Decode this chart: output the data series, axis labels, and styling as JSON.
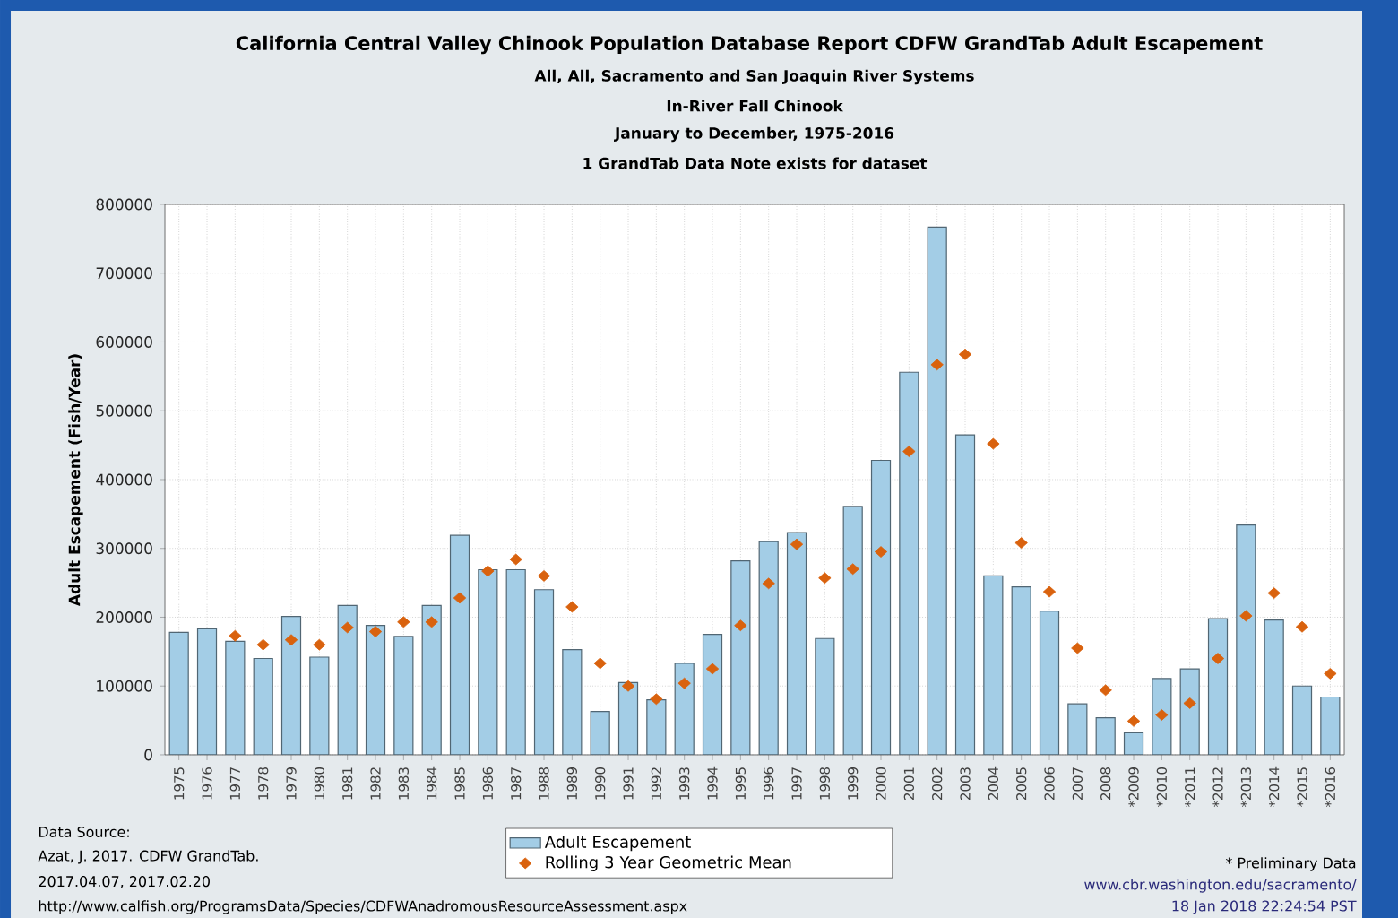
{
  "chart_data": {
    "type": "bar",
    "title": "California Central Valley Chinook Population Database Report CDFW GrandTab Adult Escapement",
    "subtitle": "All, All, Sacramento and San Joaquin River Systems",
    "ylabel": "Adult Escapement (Fish/Year)",
    "categories": [
      "1975",
      "1976",
      "1977",
      "1978",
      "1979",
      "1980",
      "1981",
      "1982",
      "1983",
      "1984",
      "1985",
      "1986",
      "1987",
      "1988",
      "1989",
      "1990",
      "1991",
      "1992",
      "1993",
      "1994",
      "1995",
      "1996",
      "1997",
      "1998",
      "1999",
      "2000",
      "2001",
      "2002",
      "2003",
      "2004",
      "2005",
      "2006",
      "2007",
      "2008",
      "*2009",
      "*2010",
      "*2011",
      "*2012",
      "*2013",
      "*2014",
      "*2015",
      "*2016"
    ],
    "series": [
      {
        "name": "Adult Escapement",
        "color": "#a3cde6",
        "values": [
          178000,
          183000,
          165000,
          140000,
          201000,
          142000,
          217000,
          188000,
          172000,
          217000,
          319000,
          269000,
          269000,
          240000,
          153000,
          63000,
          105000,
          80000,
          133000,
          175000,
          282000,
          310000,
          323000,
          169000,
          361000,
          428000,
          556000,
          767000,
          465000,
          260000,
          244000,
          209000,
          74000,
          54000,
          32000,
          111000,
          125000,
          198000,
          334000,
          196000,
          100000,
          84000
        ]
      },
      {
        "name": "Rolling 3 Year Geometric Mean",
        "type": "scatter",
        "marker": "diamond",
        "color": "#d9620e",
        "values": [
          null,
          null,
          173000,
          160000,
          167000,
          160000,
          185000,
          179000,
          193000,
          193000,
          228000,
          267000,
          284000,
          260000,
          215000,
          133000,
          100000,
          81000,
          104000,
          125000,
          188000,
          249000,
          306000,
          257000,
          270000,
          295000,
          441000,
          567000,
          582000,
          452000,
          308000,
          237000,
          155000,
          94000,
          49000,
          58000,
          75000,
          140000,
          202000,
          235000,
          186000,
          118000
        ]
      }
    ],
    "ylim": [
      0,
      800000
    ],
    "yticks": [
      0,
      100000,
      200000,
      300000,
      400000,
      500000,
      600000,
      700000,
      800000
    ],
    "grid": true,
    "legend": "bottom",
    "annotations": [
      "In-River Fall Chinook",
      "January to December, 1975-2016",
      "1 GrandTab Data Note exists for dataset",
      "Data Source:",
      "Azat, J. 2017. CDFW GrandTab.",
      "2017.04.07, 2017.02.20",
      "http://www.calfish.org/ProgramsData/Species/CDFWAnadromousResourceAssessment.aspx",
      "* Preliminary Data",
      "www.cbr.washington.edu/sacramento/",
      "18 Jan 2018 22:24:54 PST"
    ]
  }
}
